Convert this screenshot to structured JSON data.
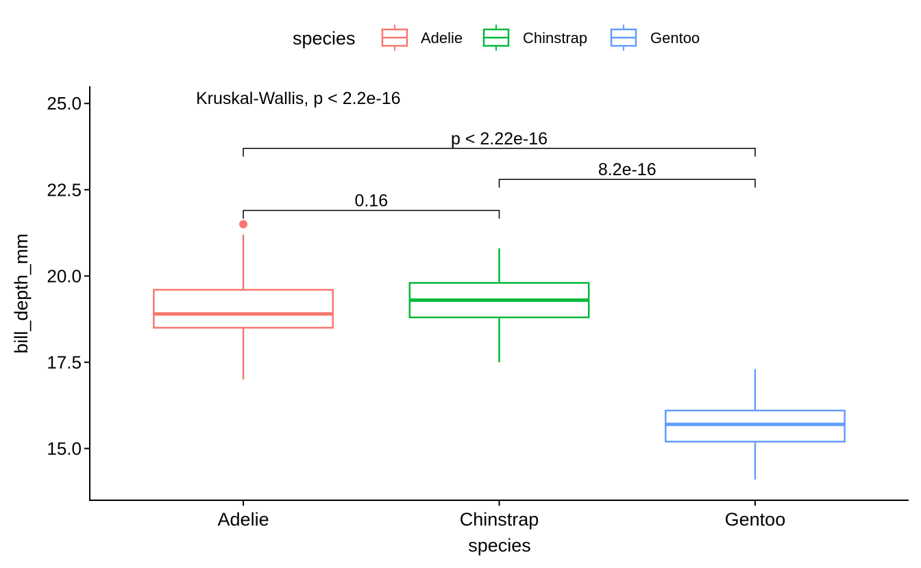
{
  "chart_data": {
    "type": "box",
    "xlabel": "species",
    "ylabel": "bill_depth_mm",
    "categories": [
      "Adelie",
      "Chinstrap",
      "Gentoo"
    ],
    "ylim": [
      13.5,
      25.5
    ],
    "yticks": [
      15.0,
      17.5,
      20.0,
      22.5,
      25.0
    ],
    "ytick_labels": [
      "15.0",
      "17.5",
      "20.0",
      "22.5",
      "25.0"
    ],
    "legend": {
      "title": "species",
      "position": "top",
      "entries": [
        "Adelie",
        "Chinstrap",
        "Gentoo"
      ]
    },
    "series": [
      {
        "name": "Adelie",
        "color": "#F8766D",
        "q1": 18.5,
        "median": 18.9,
        "q3": 19.6,
        "whisker_low": 17.0,
        "whisker_high": 21.2,
        "outliers": [
          21.5
        ]
      },
      {
        "name": "Chinstrap",
        "color": "#00BA38",
        "q1": 18.8,
        "median": 19.3,
        "q3": 19.8,
        "whisker_low": 17.5,
        "whisker_high": 20.8,
        "outliers": []
      },
      {
        "name": "Gentoo",
        "color": "#619CFF",
        "q1": 15.2,
        "median": 15.7,
        "q3": 16.1,
        "whisker_low": 14.1,
        "whisker_high": 17.3,
        "outliers": []
      }
    ],
    "annotations": {
      "global_test": "Kruskal-Wallis, p < 2.2e-16",
      "comparisons": [
        {
          "group1": "Adelie",
          "group2": "Chinstrap",
          "label": "0.16",
          "y": 21.9
        },
        {
          "group1": "Chinstrap",
          "group2": "Gentoo",
          "label": "8.2e-16",
          "y": 22.8
        },
        {
          "group1": "Adelie",
          "group2": "Gentoo",
          "label": "p < 2.22e-16",
          "y": 23.7
        }
      ]
    }
  }
}
